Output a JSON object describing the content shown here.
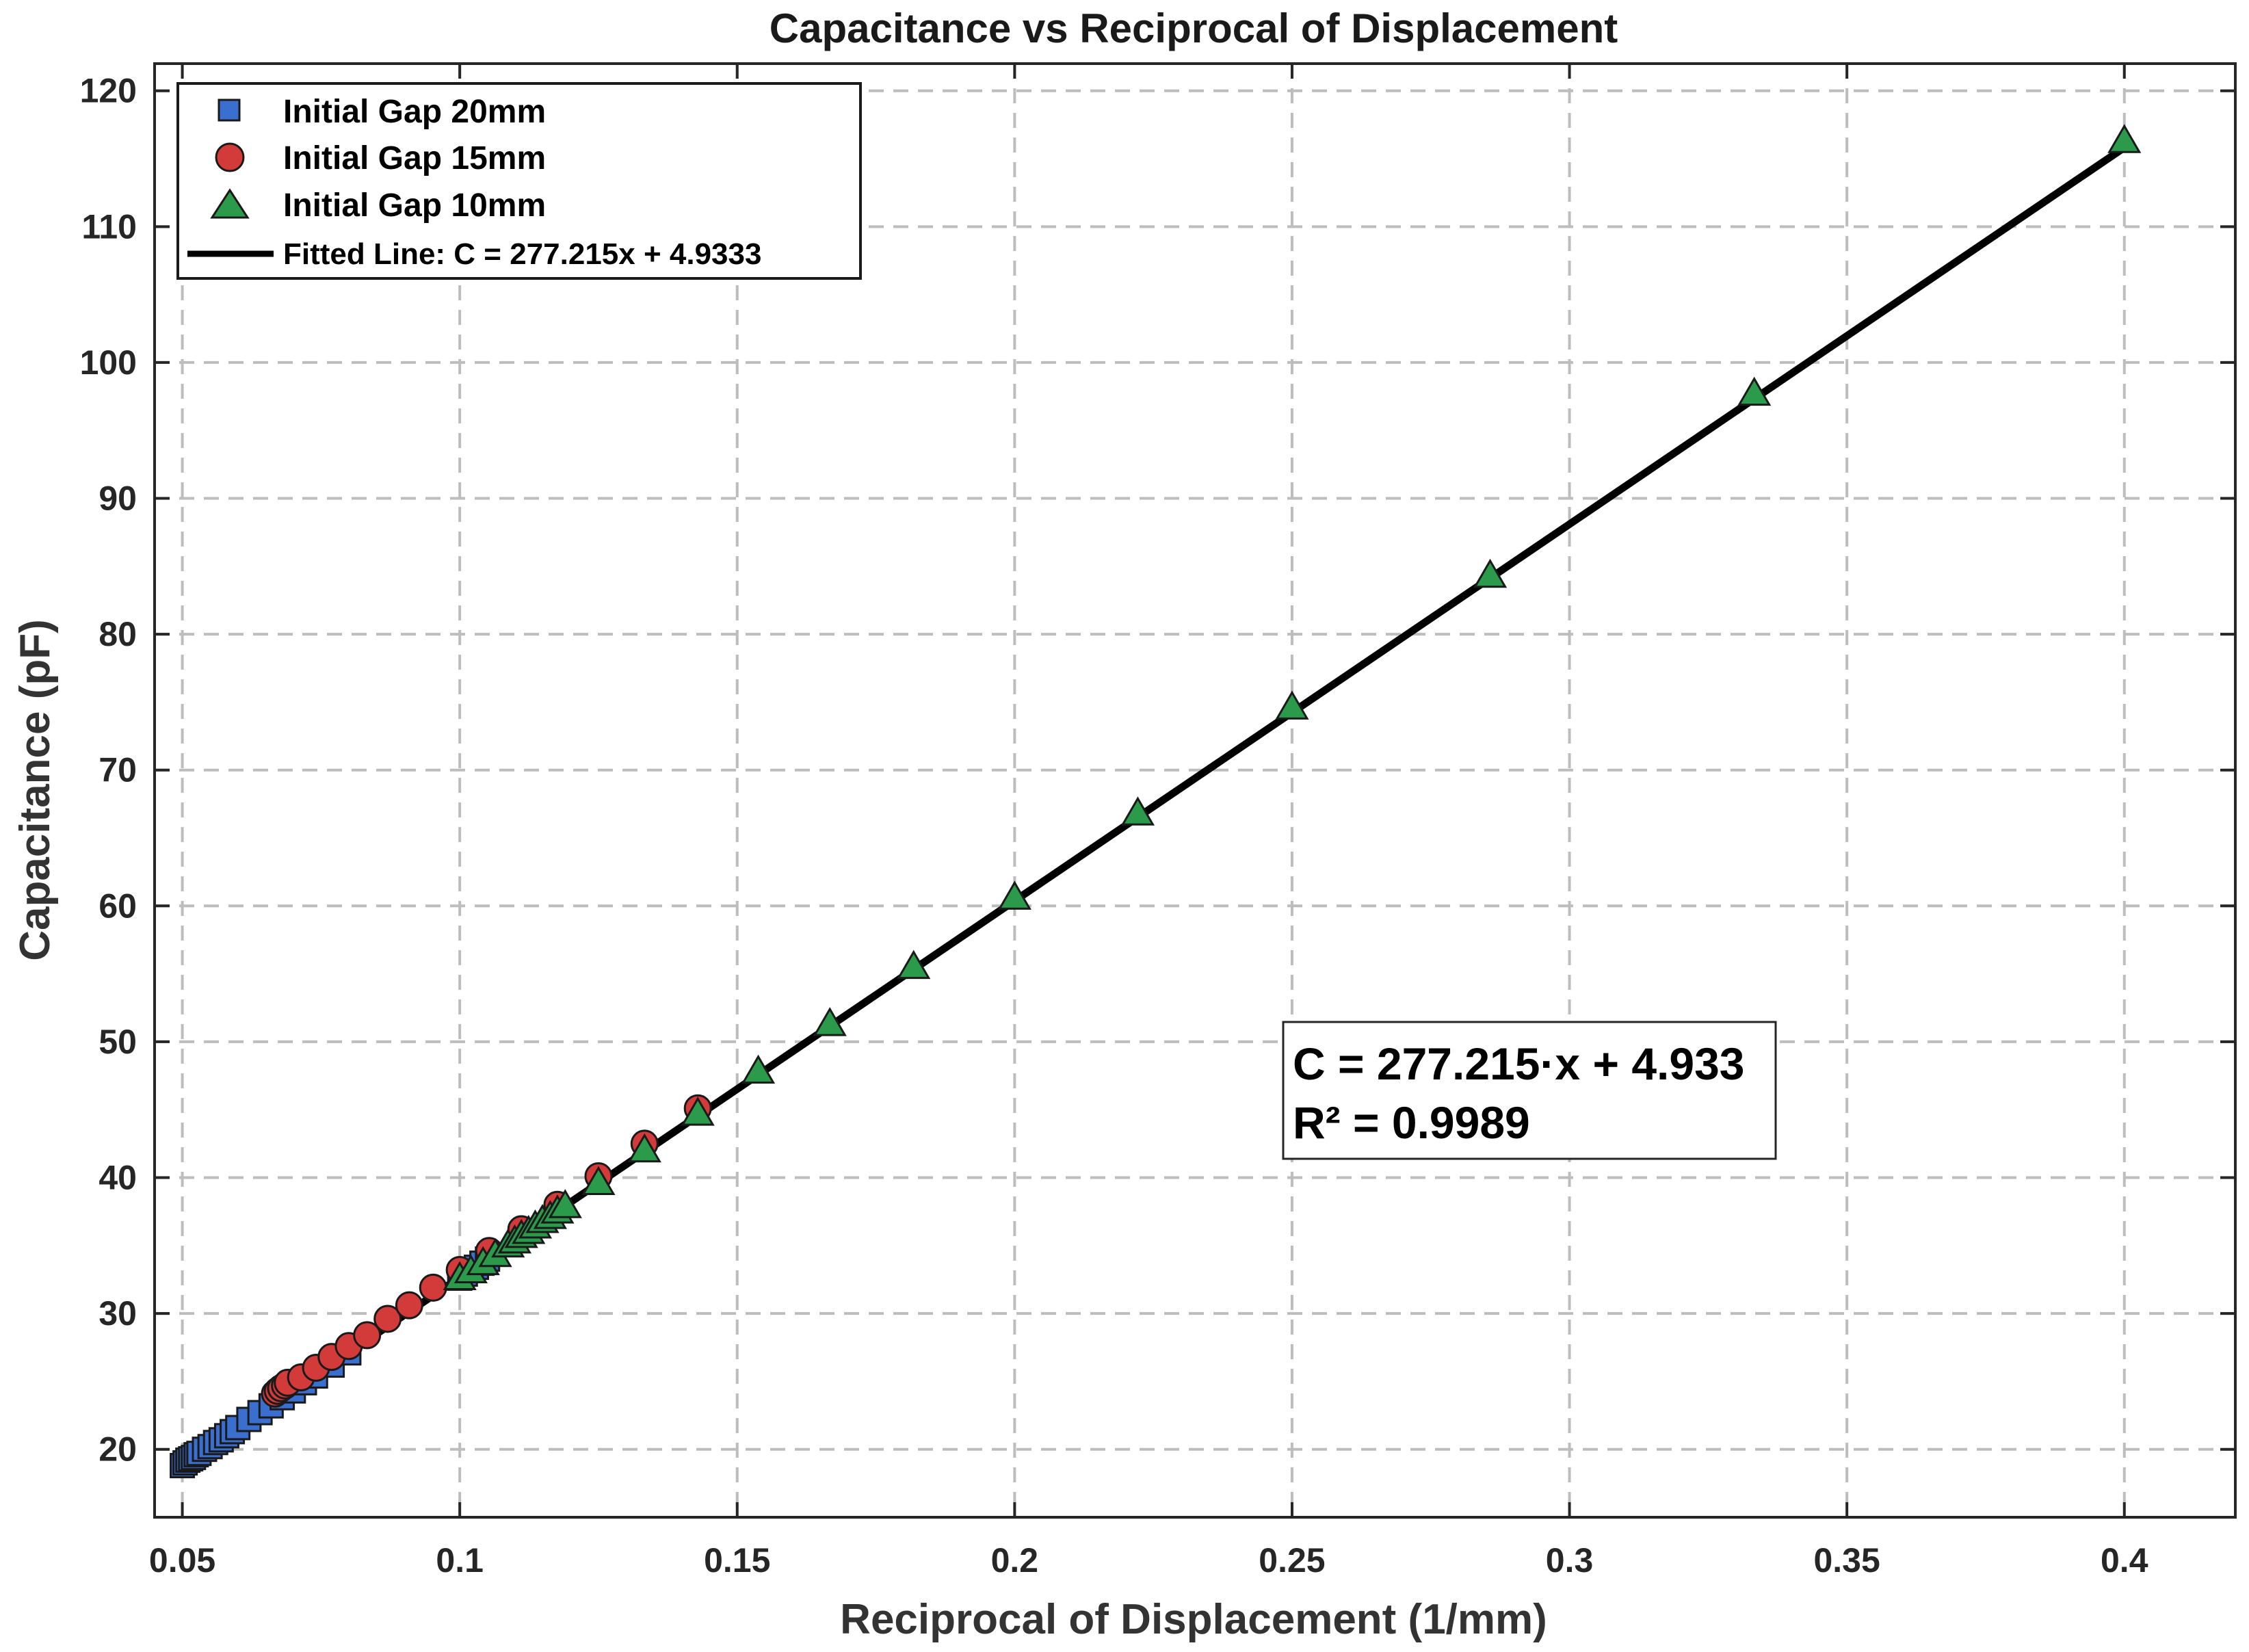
{
  "chart_data": {
    "type": "scatter",
    "title": "Capacitance vs Reciprocal of Displacement",
    "xlabel": "Reciprocal of Displacement (1/mm)",
    "ylabel": "Capacitance (pF)",
    "xlim": [
      0.045,
      0.42
    ],
    "ylim": [
      15,
      122
    ],
    "xticks": [
      0.05,
      0.1,
      0.15,
      0.2,
      0.25,
      0.3,
      0.35,
      0.4
    ],
    "xtick_labels": [
      "0.05",
      "0.1",
      "0.15",
      "0.2",
      "0.25",
      "0.3",
      "0.35",
      "0.4"
    ],
    "yticks": [
      20,
      30,
      40,
      50,
      60,
      70,
      80,
      90,
      100,
      110,
      120
    ],
    "ytick_labels": [
      "20",
      "30",
      "40",
      "50",
      "60",
      "70",
      "80",
      "90",
      "100",
      "110",
      "120"
    ],
    "grid": true,
    "legend_position": "top-left",
    "series": [
      {
        "name": "Initial Gap 20mm",
        "marker": "square",
        "color": "#3a6fd0",
        "x": [
          0.05,
          0.0505,
          0.051,
          0.0515,
          0.052,
          0.0525,
          0.053,
          0.054,
          0.055,
          0.056,
          0.057,
          0.058,
          0.059,
          0.06,
          0.062,
          0.064,
          0.066,
          0.068,
          0.07,
          0.072,
          0.074,
          0.077,
          0.08,
          0.1,
          0.101,
          0.102,
          0.103,
          0.104,
          0.105
        ],
        "y": [
          18.8,
          19.0,
          19.2,
          19.3,
          19.4,
          19.6,
          19.7,
          20.0,
          20.2,
          20.5,
          20.7,
          21.0,
          21.3,
          21.6,
          22.2,
          22.7,
          23.2,
          23.8,
          24.3,
          24.9,
          25.4,
          26.2,
          27.1,
          32.6,
          32.9,
          33.2,
          33.4,
          33.7,
          34.0
        ]
      },
      {
        "name": "Initial Gap 15mm",
        "marker": "circle",
        "color": "#d33a3a",
        "x": [
          0.0667,
          0.0672,
          0.0678,
          0.0685,
          0.069,
          0.0714,
          0.0741,
          0.0769,
          0.08,
          0.0833,
          0.087,
          0.0909,
          0.0952,
          0.1,
          0.1053,
          0.1111,
          0.1176,
          0.125,
          0.1333,
          0.1429
        ],
        "y": [
          24.1,
          24.3,
          24.5,
          24.7,
          24.9,
          25.3,
          26.0,
          26.8,
          27.6,
          28.4,
          29.6,
          30.6,
          31.9,
          33.2,
          34.6,
          36.2,
          38.0,
          40.1,
          42.5,
          45.1
        ]
      },
      {
        "name": "Initial Gap 10mm",
        "marker": "triangle",
        "color": "#2b9a4a",
        "x": [
          0.1,
          0.102,
          0.1042,
          0.1064,
          0.1087,
          0.1099,
          0.1111,
          0.1124,
          0.1136,
          0.1149,
          0.1163,
          0.1176,
          0.119,
          0.125,
          0.1333,
          0.1429,
          0.1538,
          0.1667,
          0.1818,
          0.2,
          0.2222,
          0.25,
          0.2857,
          0.3333,
          0.4
        ],
        "y": [
          32.6,
          33.1,
          33.7,
          34.3,
          35.0,
          35.3,
          35.7,
          36.0,
          36.4,
          36.8,
          37.1,
          37.5,
          37.9,
          39.6,
          42.0,
          44.7,
          47.8,
          51.3,
          55.5,
          60.6,
          66.8,
          74.6,
          84.3,
          97.7,
          116.3
        ]
      }
    ],
    "fit_line": {
      "name": "Fitted Line: C = 277.215x + 4.9333",
      "slope": 277.215,
      "intercept": 4.9333,
      "x_range": [
        0.05,
        0.4
      ],
      "color": "#000000"
    },
    "annotation": {
      "line1": "C = 277.215·x + 4.933",
      "line2": "R² = 0.9989"
    }
  }
}
